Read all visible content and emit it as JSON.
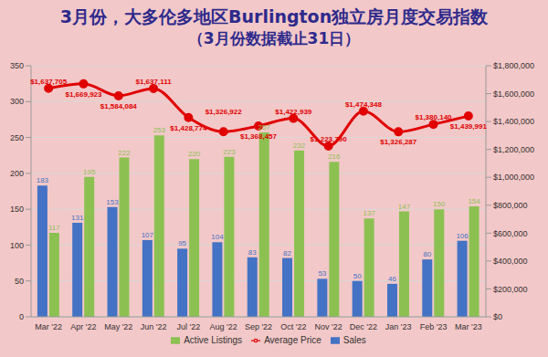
{
  "chart_data": {
    "type": "bar",
    "title": "3月份，大多伦多地区Burlington独立房月度交易指数",
    "subtitle": "（3月份数据截止31日）",
    "categories": [
      "Mar '22",
      "Apr '22",
      "May '22",
      "Jun '22",
      "Jul '22",
      "Aug '22",
      "Sep '22",
      "Oct '22",
      "Nov '22",
      "Dec '22",
      "Jan '23",
      "Feb '23",
      "Mar '23"
    ],
    "series": [
      {
        "name": "Sales",
        "type": "bar",
        "color": "#4472c4",
        "values": [
          183,
          131,
          153,
          107,
          95,
          104,
          83,
          82,
          53,
          50,
          46,
          80,
          106
        ]
      },
      {
        "name": "Active Listings",
        "type": "bar",
        "color": "#8cc152",
        "values": [
          117,
          195,
          222,
          253,
          220,
          223,
          257,
          232,
          216,
          137,
          147,
          150,
          154
        ]
      },
      {
        "name": "Average Price",
        "type": "line",
        "axis": "y2",
        "color": "#e00000",
        "marker": "circle",
        "line_style": "solid",
        "values": [
          1637705,
          1669923,
          1584084,
          1637111,
          1428774,
          1326922,
          1368457,
          1422939,
          1223790,
          1474348,
          1326287,
          1380140,
          1439991
        ],
        "value_labels": [
          "$1,637,705",
          "$1,669,923",
          "$1,584,084",
          "$1,637,111",
          "$1,428,774",
          "$1,326,922",
          "$1,368,457",
          "$1,422,939",
          "$1,223,790",
          "$1,474,348",
          "$1,326,287",
          "$1,380,140",
          "$1,439,991"
        ]
      }
    ],
    "ylim": [
      0,
      350
    ],
    "yticks": [
      0,
      50,
      100,
      150,
      200,
      250,
      300,
      350
    ],
    "y2lim": [
      0,
      1800000
    ],
    "y2ticks": [
      {
        "value": 0,
        "label": "$0"
      },
      {
        "value": 200000,
        "label": "$200,000"
      },
      {
        "value": 400000,
        "label": "$400,000"
      },
      {
        "value": 600000,
        "label": "$600,000"
      },
      {
        "value": 800000,
        "label": "$800,000"
      },
      {
        "value": 1000000,
        "label": "$1,000,000"
      },
      {
        "value": 1200000,
        "label": "$1,200,000"
      },
      {
        "value": 1400000,
        "label": "$1,400,000"
      },
      {
        "value": 1600000,
        "label": "$1,600,000"
      },
      {
        "value": 1800000,
        "label": "$1,800,000"
      }
    ],
    "grid": true,
    "legend": "bottom",
    "data_labels": true
  }
}
